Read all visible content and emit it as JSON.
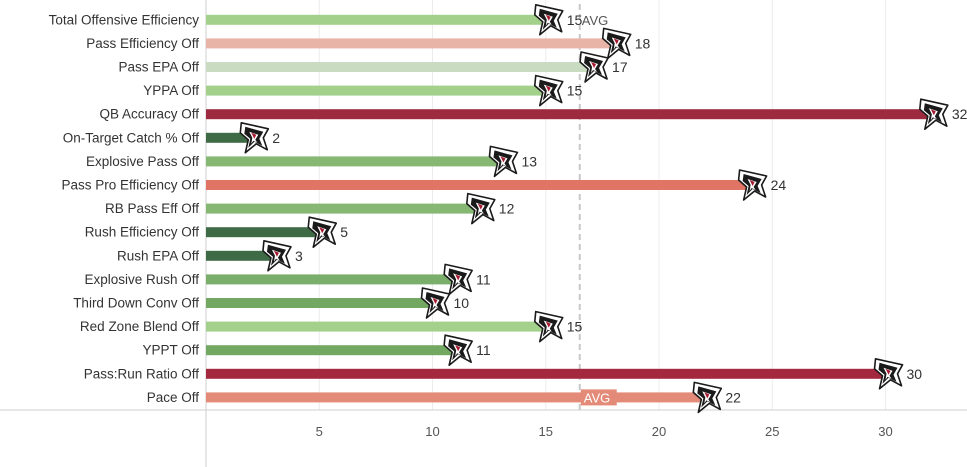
{
  "chart_data": {
    "type": "bar",
    "orientation": "horizontal",
    "categories": [
      "Total Offensive Efficiency",
      "Pass Efficiency Off",
      "Pass EPA Off",
      "YPPA Off",
      "QB Accuracy Off",
      "On-Target Catch % Off",
      "Explosive Pass Off",
      "Pass Pro Efficiency Off",
      "RB Pass Eff Off",
      "Rush Efficiency Off",
      "Rush EPA Off",
      "Explosive Rush Off",
      "Third Down Conv Off",
      "Red Zone Blend Off",
      "YPPT Off",
      "Pass:Run Ratio Off",
      "Pace Off"
    ],
    "values": [
      15,
      18,
      17,
      15,
      32,
      2,
      13,
      24,
      12,
      5,
      3,
      11,
      10,
      15,
      11,
      30,
      22
    ],
    "colors": [
      "#a3d18c",
      "#e8b4a8",
      "#c9dbc0",
      "#a3d18c",
      "#9e2a3f",
      "#3e6b45",
      "#86b873",
      "#e07565",
      "#86b873",
      "#3e6b45",
      "#3e6b45",
      "#7aae6a",
      "#72a862",
      "#a3d18c",
      "#72a862",
      "#a5293e",
      "#e48a78"
    ],
    "xticks": [
      5,
      10,
      15,
      20,
      25,
      30
    ],
    "xlim": [
      0,
      33.2
    ],
    "avg": {
      "value": 16.5,
      "label": "AVG"
    },
    "icon": "falcons-logo-icon",
    "grid": "vertical"
  }
}
